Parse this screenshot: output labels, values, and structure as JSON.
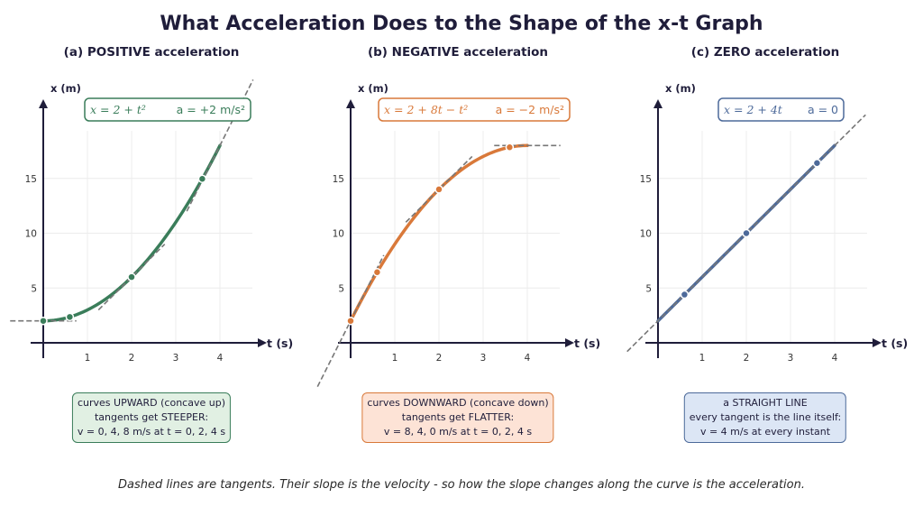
{
  "title": "What Acceleration Does to the Shape of the x-t Graph",
  "caption": "Dashed lines are tangents. Their slope is the velocity - so how the slope changes along the curve is the acceleration.",
  "chart_data": [
    {
      "type": "line",
      "panel_title": "(a)  POSITIVE acceleration",
      "xlabel": "t (s)",
      "ylabel": "x (m)",
      "xticks": [
        "1",
        "2",
        "3",
        "4"
      ],
      "yticks": [
        "5",
        "10",
        "15"
      ],
      "equation": "x = 2 + t²",
      "accel": "a = +2 m/s²",
      "color": "#3a7d5a",
      "fill": "#e1f0e3",
      "curve": {
        "a": 2,
        "b": 0,
        "c": 1,
        "t_range": [
          0,
          4
        ]
      },
      "points_t": [
        0,
        0.6,
        2,
        3.6
      ],
      "tangent_t": [
        0,
        2,
        4
      ],
      "note": [
        "curves UPWARD (concave up)",
        "tangents get STEEPER:",
        "v = 0, 4, 8 m/s at t = 0, 2, 4 s"
      ]
    },
    {
      "type": "line",
      "panel_title": "(b)  NEGATIVE acceleration",
      "xlabel": "t (s)",
      "ylabel": "x (m)",
      "xticks": [
        "1",
        "2",
        "3",
        "4"
      ],
      "yticks": [
        "5",
        "10",
        "15"
      ],
      "equation": "x = 2 + 8t − t²",
      "accel": "a = −2 m/s²",
      "color": "#d9793a",
      "fill": "#fde3d6",
      "curve": {
        "a": 2,
        "b": 8,
        "c": -1,
        "t_range": [
          0,
          4
        ]
      },
      "points_t": [
        0,
        0.6,
        2,
        3.6
      ],
      "tangent_t": [
        0,
        2,
        4
      ],
      "note": [
        "curves DOWNWARD (concave down)",
        "tangents get FLATTER:",
        "v = 8, 4, 0 m/s at t = 0, 2, 4 s"
      ]
    },
    {
      "type": "line",
      "panel_title": "(c)  ZERO acceleration",
      "xlabel": "t (s)",
      "ylabel": "x (m)",
      "xticks": [
        "1",
        "2",
        "3",
        "4"
      ],
      "yticks": [
        "5",
        "10",
        "15"
      ],
      "equation": "x = 2 + 4t",
      "accel": "a = 0",
      "color": "#4d6a9a",
      "fill": "#dce6f5",
      "curve": {
        "a": 2,
        "b": 4,
        "c": 0,
        "t_range": [
          0,
          4
        ]
      },
      "points_t": [
        0.6,
        2,
        3.6
      ],
      "tangent_t": [
        2
      ],
      "note": [
        "a STRAIGHT LINE",
        "every tangent is the line itself:",
        "v = 4 m/s at every instant"
      ]
    }
  ]
}
